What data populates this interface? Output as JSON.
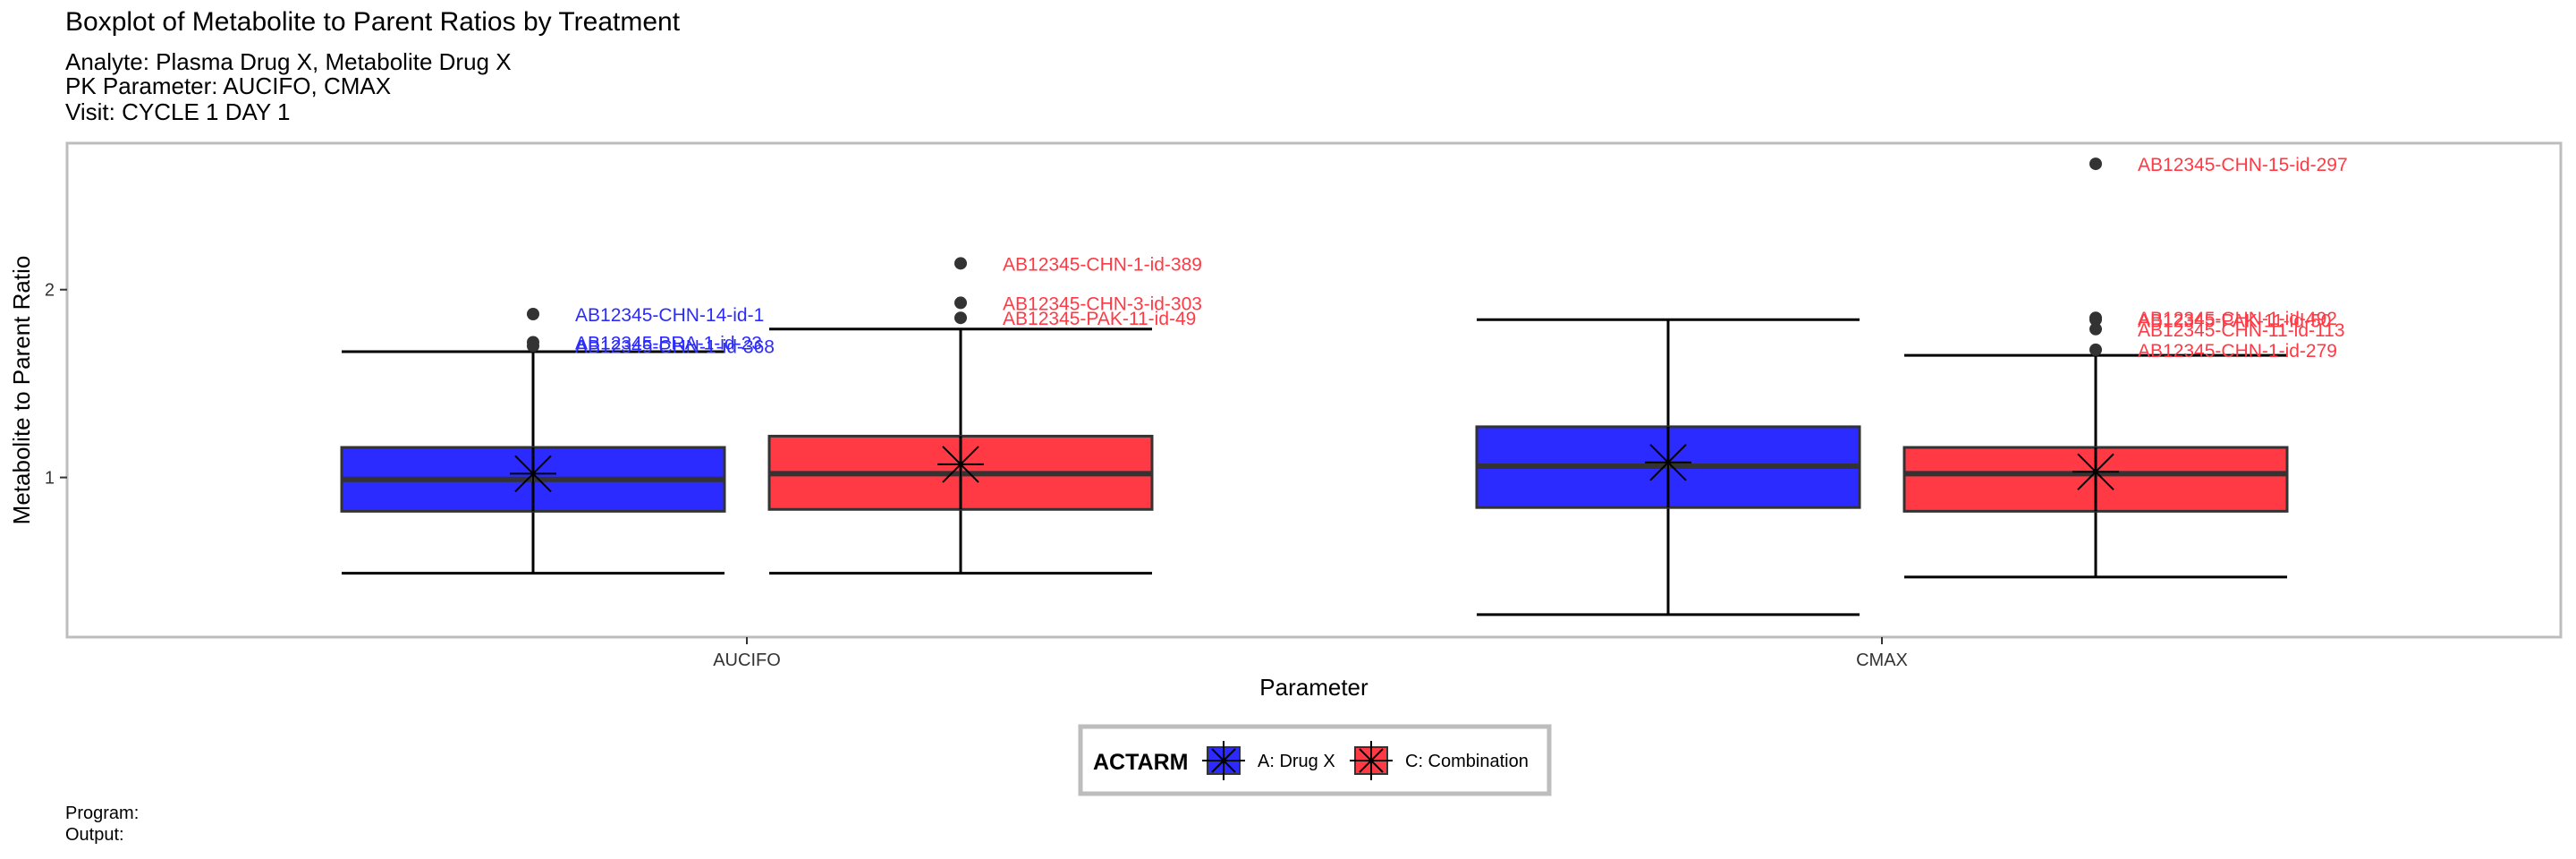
{
  "header": {
    "title": "Boxplot of Metabolite to Parent Ratios by Treatment",
    "subtitle_lines": [
      "Analyte: Plasma Drug X, Metabolite Drug X",
      "PK Parameter: AUCIFO, CMAX",
      "Visit: CYCLE 1 DAY 1"
    ]
  },
  "footer": {
    "program": "Program:",
    "output": "Output:"
  },
  "colors": {
    "drug_x": "#2b2bff",
    "combination": "#ff3a45",
    "blue_label": "#2b2bff",
    "red_label": "#ff3a45"
  },
  "chart_data": {
    "type": "boxplot",
    "title": "Boxplot of Metabolite to Parent Ratios by Treatment",
    "xlabel": "Parameter",
    "ylabel": "Metabolite to Parent Ratio",
    "categories": [
      "AUCIFO",
      "CMAX"
    ],
    "ylim": [
      0.15,
      2.78
    ],
    "yticks": [
      1,
      2
    ],
    "legend": {
      "title": "ACTARM",
      "position": "bottom"
    },
    "series": [
      {
        "name": "A: Drug X",
        "color": "#2b2bff",
        "boxes": [
          {
            "category": "AUCIFO",
            "whisker_low": 0.49,
            "q1": 0.82,
            "median": 0.99,
            "q3": 1.16,
            "whisker_high": 1.67,
            "mean": 1.02,
            "outliers": [
              {
                "y": 1.87,
                "label": "AB12345-CHN-14-id-1"
              },
              {
                "y": 1.72,
                "label": "AB12345-BRA-1-id-23"
              },
              {
                "y": 1.7,
                "label": "AB12345-CHN-1-id-368"
              }
            ]
          },
          {
            "category": "CMAX",
            "whisker_low": 0.27,
            "q1": 0.84,
            "median": 1.06,
            "q3": 1.27,
            "whisker_high": 1.84,
            "mean": 1.08,
            "outliers": []
          }
        ]
      },
      {
        "name": "C: Combination",
        "color": "#ff3a45",
        "boxes": [
          {
            "category": "AUCIFO",
            "whisker_low": 0.49,
            "q1": 0.83,
            "median": 1.02,
            "q3": 1.22,
            "whisker_high": 1.79,
            "mean": 1.07,
            "outliers": [
              {
                "y": 2.14,
                "label": "AB12345-CHN-1-id-389"
              },
              {
                "y": 1.93,
                "label": "AB12345-CHN-3-id-303"
              },
              {
                "y": 1.85,
                "label": "AB12345-PAK-11-id-49"
              }
            ]
          },
          {
            "category": "CMAX",
            "whisker_low": 0.47,
            "q1": 0.82,
            "median": 1.02,
            "q3": 1.16,
            "whisker_high": 1.65,
            "mean": 1.03,
            "outliers": [
              {
                "y": 2.67,
                "label": "AB12345-CHN-15-id-297"
              },
              {
                "y": 1.85,
                "label": "AB12345-CHN-1-id-492"
              },
              {
                "y": 1.84,
                "label": "AB12345-PAK-11-id-50"
              },
              {
                "y": 1.79,
                "label": "AB12345-CHN-11-id-113"
              },
              {
                "y": 1.68,
                "label": "AB12345-CHN-1-id-279"
              }
            ]
          }
        ]
      }
    ]
  }
}
